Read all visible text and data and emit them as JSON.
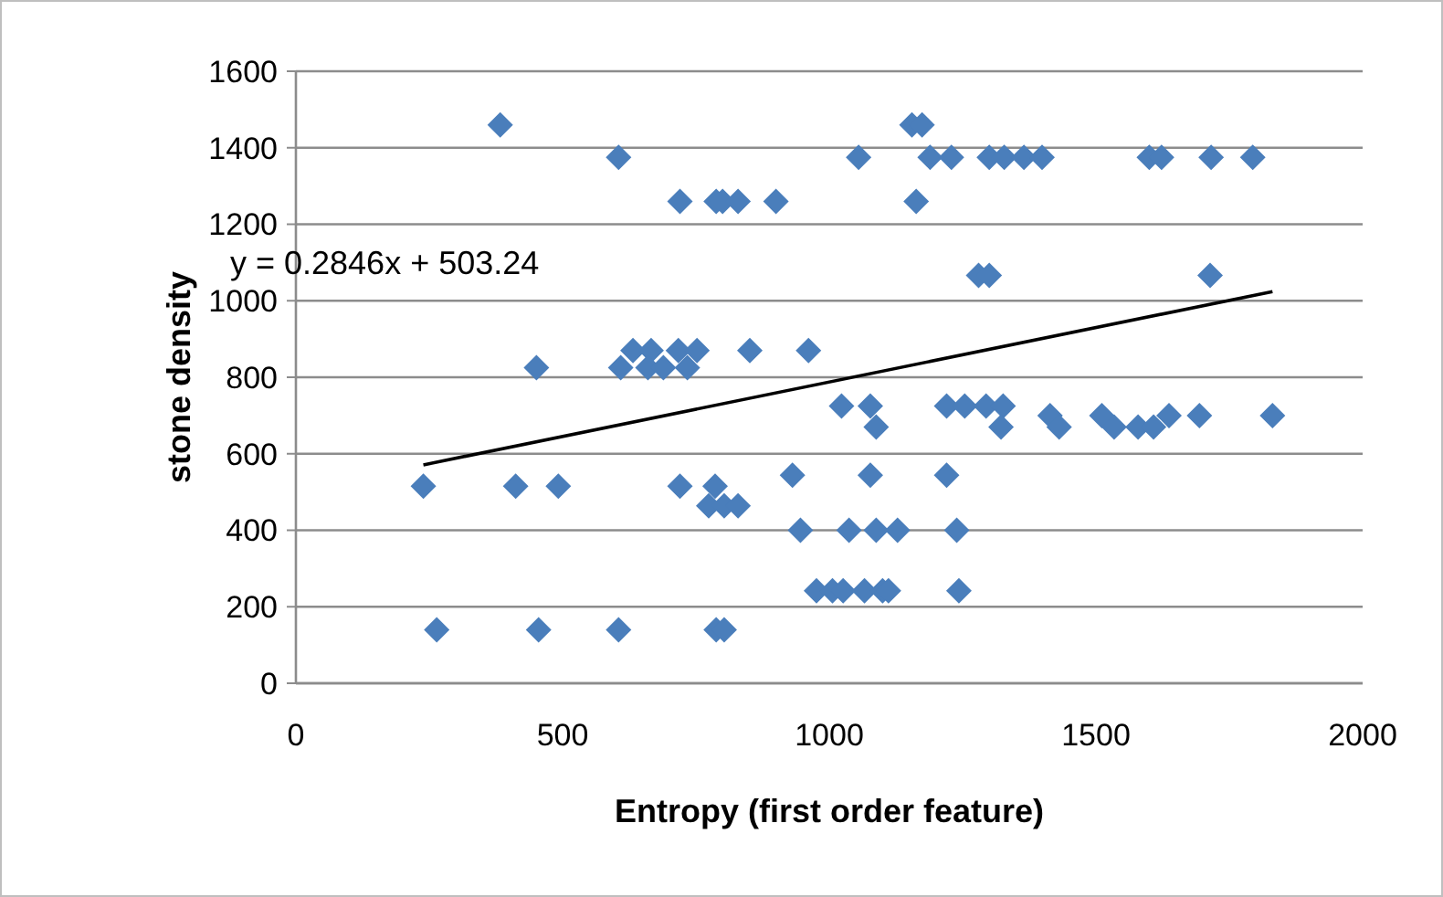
{
  "chart_data": {
    "type": "scatter",
    "xlabel": "Entropy (first order feature)",
    "ylabel": "stone density",
    "xlim": [
      0,
      2000
    ],
    "xticks": [
      0,
      500,
      1000,
      1500,
      2000
    ],
    "ylim": [
      0,
      1600
    ],
    "yticks": [
      0,
      200,
      400,
      600,
      800,
      1000,
      1200,
      1400,
      1600
    ],
    "grid": "y",
    "annotations": [
      "y = 0.2846x + 503.24"
    ],
    "series": [
      {
        "color": "#4a7ebb",
        "marker": "diamond",
        "x": [
          383,
          1155,
          1174,
          605,
          1055,
          1189,
          1229,
          1300,
          1328,
          1365,
          1399,
          1600,
          1623,
          1716,
          1794,
          720,
          788,
          800,
          829,
          900,
          1163,
          1280,
          1300,
          1714,
          632,
          666,
          717,
          752,
          851,
          961,
          451,
          609,
          660,
          689,
          734,
          1023,
          1077,
          1220,
          1254,
          1294,
          1326,
          1414,
          1511,
          1637,
          1694,
          1831,
          1088,
          1322,
          1431,
          1534,
          1579,
          1608,
          931,
          1077,
          1220,
          239,
          412,
          492,
          720,
          786,
          774,
          803,
          829,
          946,
          1037,
          1088,
          1128,
          1239,
          976,
          1006,
          1026,
          1066,
          1100,
          1111,
          1243,
          264,
          455,
          605,
          788,
          803
        ],
        "values": [
          1460,
          1460,
          1460,
          1375,
          1375,
          1375,
          1375,
          1375,
          1375,
          1375,
          1375,
          1375,
          1375,
          1375,
          1375,
          1260,
          1260,
          1260,
          1260,
          1260,
          1260,
          1066,
          1066,
          1066,
          870,
          870,
          870,
          870,
          870,
          870,
          825,
          825,
          825,
          825,
          825,
          725,
          725,
          725,
          725,
          725,
          725,
          700,
          700,
          700,
          700,
          700,
          670,
          670,
          670,
          670,
          670,
          670,
          544,
          544,
          544,
          515,
          515,
          515,
          515,
          515,
          464,
          464,
          464,
          400,
          400,
          400,
          400,
          400,
          242,
          242,
          242,
          242,
          242,
          242,
          242,
          140,
          140,
          140,
          140,
          140
        ]
      },
      {
        "type": "line",
        "color": "#000000",
        "marker": "none",
        "line_style": "solid",
        "x": [
          239,
          1831
        ],
        "values": [
          571,
          1024
        ]
      }
    ]
  }
}
